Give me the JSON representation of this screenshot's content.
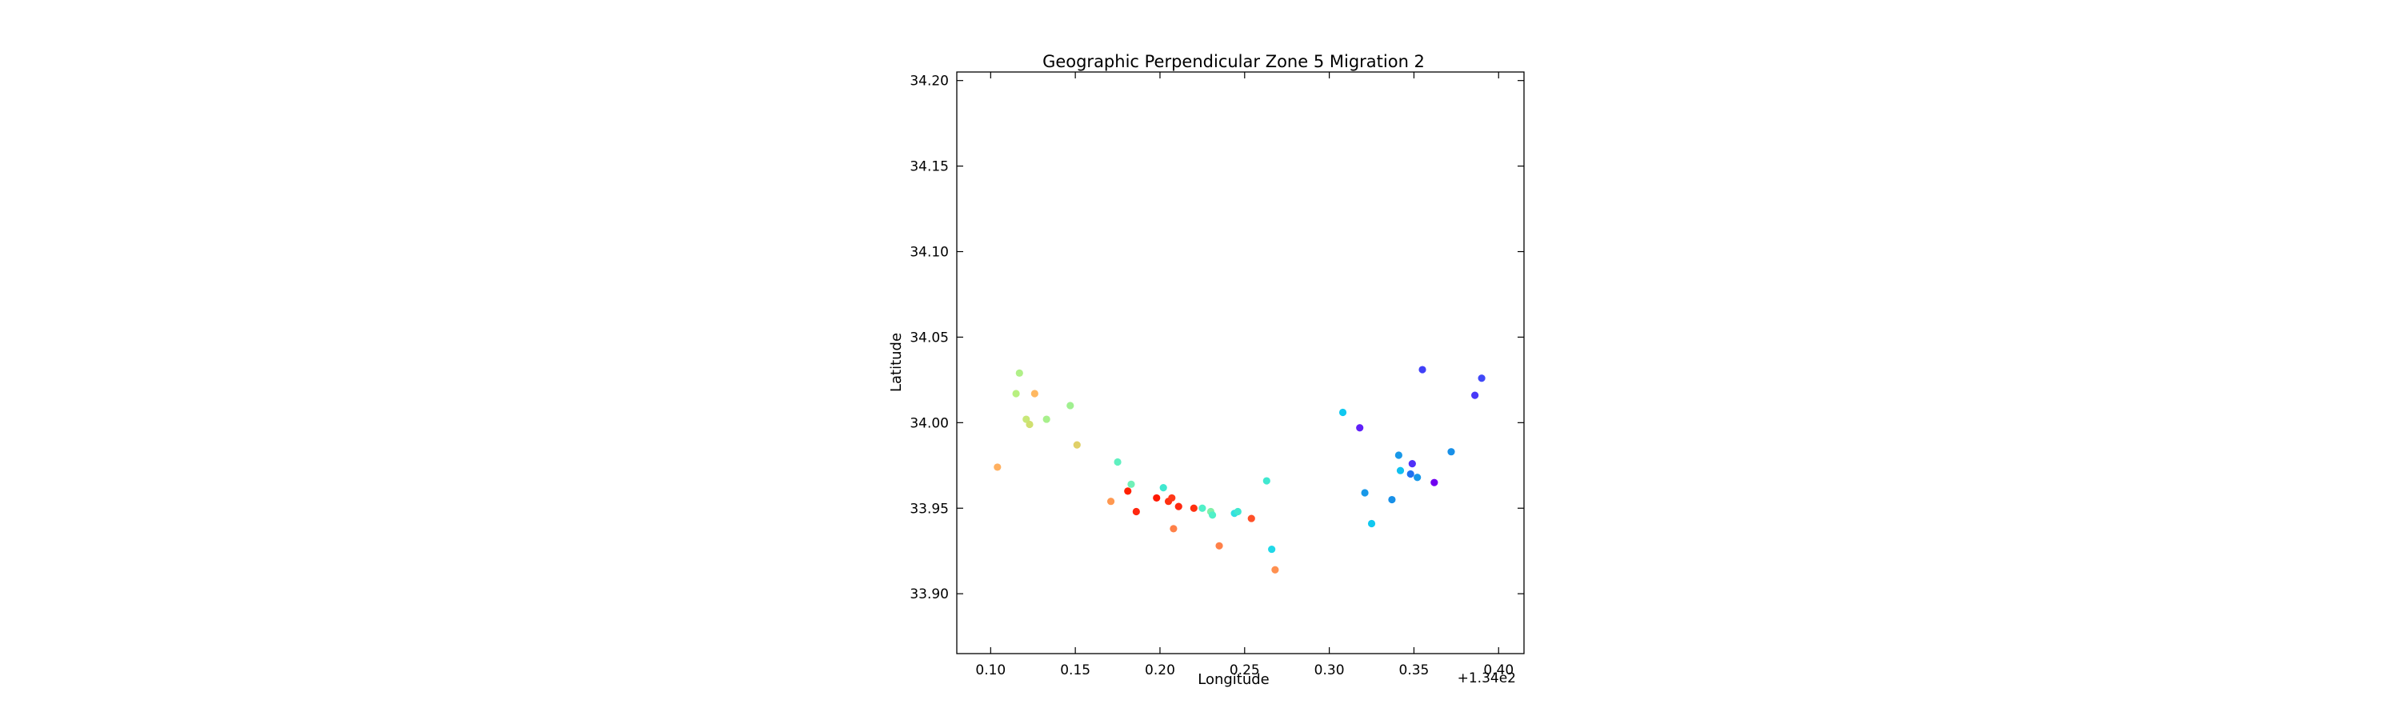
{
  "chart_data": {
    "type": "scatter",
    "title": "Geographic Perpendicular Zone 5 Migration 2",
    "xlabel": "Longitude",
    "ylabel": "Latitude",
    "x_offset_label": "+1.34e2",
    "xlim": [
      134.08,
      134.415
    ],
    "ylim": [
      33.865,
      34.205
    ],
    "xticks": [
      134.1,
      134.15,
      134.2,
      134.25,
      134.3,
      134.35,
      134.4
    ],
    "xtick_labels": [
      "0.10",
      "0.15",
      "0.20",
      "0.25",
      "0.30",
      "0.35",
      "0.40"
    ],
    "yticks": [
      33.9,
      33.95,
      34.0,
      34.05,
      34.1,
      34.15,
      34.2
    ],
    "ytick_labels": [
      "33.90",
      "33.95",
      "34.00",
      "34.05",
      "34.10",
      "34.15",
      "34.20"
    ],
    "grid": false,
    "points": [
      {
        "x": 134.104,
        "y": 33.974,
        "color": "#ffb060"
      },
      {
        "x": 134.115,
        "y": 34.017,
        "color": "#b8f080"
      },
      {
        "x": 134.117,
        "y": 34.029,
        "color": "#b0f088"
      },
      {
        "x": 134.121,
        "y": 34.002,
        "color": "#c8e878"
      },
      {
        "x": 134.123,
        "y": 33.999,
        "color": "#d0e070"
      },
      {
        "x": 134.126,
        "y": 34.017,
        "color": "#ffb860"
      },
      {
        "x": 134.133,
        "y": 34.002,
        "color": "#a8f08c"
      },
      {
        "x": 134.147,
        "y": 34.01,
        "color": "#a0f090"
      },
      {
        "x": 134.151,
        "y": 33.987,
        "color": "#e0d068"
      },
      {
        "x": 134.171,
        "y": 33.954,
        "color": "#ff9850"
      },
      {
        "x": 134.175,
        "y": 33.977,
        "color": "#60f0c0"
      },
      {
        "x": 134.181,
        "y": 33.96,
        "color": "#ff2000"
      },
      {
        "x": 134.183,
        "y": 33.964,
        "color": "#70f0b8"
      },
      {
        "x": 134.186,
        "y": 33.948,
        "color": "#ff2810"
      },
      {
        "x": 134.198,
        "y": 33.956,
        "color": "#ff1800"
      },
      {
        "x": 134.202,
        "y": 33.962,
        "color": "#40e8d0"
      },
      {
        "x": 134.205,
        "y": 33.954,
        "color": "#ff3010"
      },
      {
        "x": 134.207,
        "y": 33.956,
        "color": "#ff3818"
      },
      {
        "x": 134.208,
        "y": 33.938,
        "color": "#ff8048"
      },
      {
        "x": 134.211,
        "y": 33.951,
        "color": "#ff2810"
      },
      {
        "x": 134.22,
        "y": 33.95,
        "color": "#ff3010"
      },
      {
        "x": 134.225,
        "y": 33.95,
        "color": "#50f0c8"
      },
      {
        "x": 134.23,
        "y": 33.948,
        "color": "#80f0a8"
      },
      {
        "x": 134.231,
        "y": 33.946,
        "color": "#50f0c8"
      },
      {
        "x": 134.235,
        "y": 33.928,
        "color": "#ff8048"
      },
      {
        "x": 134.244,
        "y": 33.947,
        "color": "#30e0e0"
      },
      {
        "x": 134.246,
        "y": 33.948,
        "color": "#40e8d0"
      },
      {
        "x": 134.254,
        "y": 33.944,
        "color": "#ff5028"
      },
      {
        "x": 134.263,
        "y": 33.966,
        "color": "#40e8d0"
      },
      {
        "x": 134.266,
        "y": 33.926,
        "color": "#20d8e8"
      },
      {
        "x": 134.268,
        "y": 33.914,
        "color": "#ff9050"
      },
      {
        "x": 134.308,
        "y": 34.006,
        "color": "#10c8f0"
      },
      {
        "x": 134.318,
        "y": 33.997,
        "color": "#6020f8"
      },
      {
        "x": 134.321,
        "y": 33.959,
        "color": "#1898e8"
      },
      {
        "x": 134.325,
        "y": 33.941,
        "color": "#10c8f0"
      },
      {
        "x": 134.337,
        "y": 33.955,
        "color": "#1890e8"
      },
      {
        "x": 134.341,
        "y": 33.981,
        "color": "#1898e8"
      },
      {
        "x": 134.342,
        "y": 33.972,
        "color": "#10c0f0"
      },
      {
        "x": 134.348,
        "y": 33.97,
        "color": "#2070f0"
      },
      {
        "x": 134.349,
        "y": 33.976,
        "color": "#5030f8"
      },
      {
        "x": 134.352,
        "y": 33.968,
        "color": "#1898e8"
      },
      {
        "x": 134.355,
        "y": 34.031,
        "color": "#4040f8"
      },
      {
        "x": 134.362,
        "y": 33.965,
        "color": "#7000f0"
      },
      {
        "x": 134.372,
        "y": 33.983,
        "color": "#1890e8"
      },
      {
        "x": 134.386,
        "y": 34.016,
        "color": "#4838f8"
      },
      {
        "x": 134.39,
        "y": 34.026,
        "color": "#4048f8"
      }
    ]
  }
}
